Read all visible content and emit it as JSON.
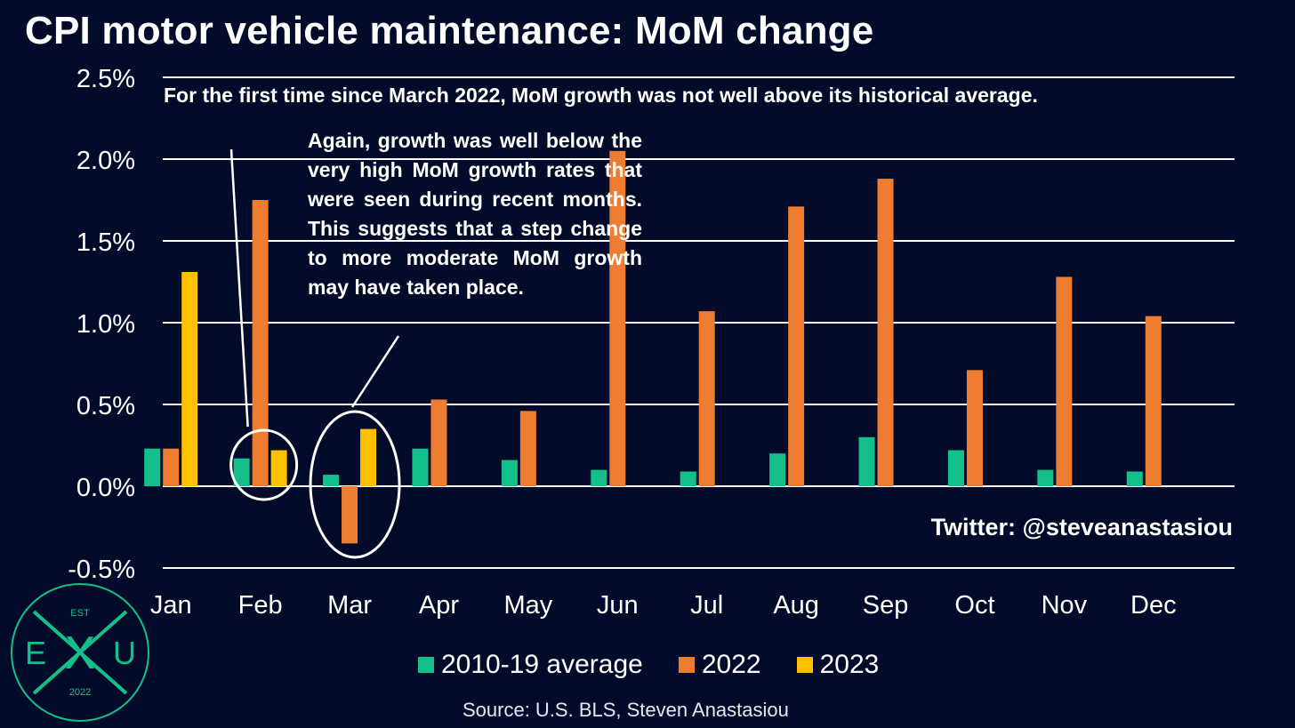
{
  "title": "CPI motor vehicle maintenance: MoM change",
  "annotations": {
    "top": "For the first time since March 2022, MoM growth was not well above its historical average.",
    "middle": "Again, growth was well below the very high MoM growth rates that were seen during recent months. This suggests that a step change to more moderate MoM growth may have taken place."
  },
  "twitter": "Twitter: @steveanastasiou",
  "source": "Source: U.S. BLS, Steven Anastasiou",
  "logo": {
    "top": "EST",
    "left": "E",
    "center": "X",
    "right": "U",
    "bottom": "2022"
  },
  "colors": {
    "background": "#030b2b",
    "avg": "#14c08a",
    "y2022": "#ee7d31",
    "y2023": "#ffc000",
    "logo": "#14c08a"
  },
  "chart_data": {
    "type": "bar",
    "title": "CPI motor vehicle maintenance: MoM change",
    "categories": [
      "Jan",
      "Feb",
      "Mar",
      "Apr",
      "May",
      "Jun",
      "Jul",
      "Aug",
      "Sep",
      "Oct",
      "Nov",
      "Dec"
    ],
    "series": [
      {
        "name": "2010-19 average",
        "values": [
          0.23,
          0.17,
          0.07,
          0.23,
          0.16,
          0.1,
          0.09,
          0.2,
          0.3,
          0.22,
          0.1,
          0.09
        ]
      },
      {
        "name": "2022",
        "values": [
          0.23,
          1.75,
          -0.35,
          0.53,
          0.46,
          2.05,
          1.07,
          1.71,
          1.88,
          0.71,
          1.28,
          1.04
        ]
      },
      {
        "name": "2023",
        "values": [
          1.31,
          0.22,
          0.35,
          null,
          null,
          null,
          null,
          null,
          null,
          null,
          null,
          null
        ]
      }
    ],
    "yticks": [
      "2.5%",
      "2.0%",
      "1.5%",
      "1.0%",
      "0.5%",
      "0.0%",
      "-0.5%"
    ],
    "ylim": [
      -0.5,
      2.5
    ],
    "grid": true,
    "legend": "bottom",
    "highlighted_categories": [
      "Feb",
      "Mar"
    ]
  }
}
